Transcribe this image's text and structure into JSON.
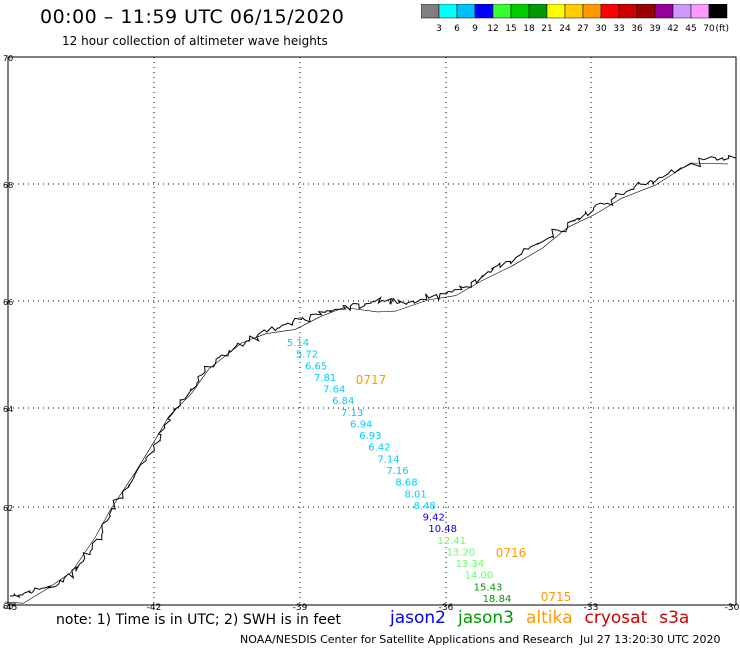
{
  "header": {
    "title": "00:00 – 11:59 UTC 06/15/2020",
    "subtitle": "12 hour collection of altimeter wave heights"
  },
  "scale": {
    "labels": [
      "3",
      "6",
      "9",
      "12",
      "15",
      "18",
      "21",
      "24",
      "27",
      "30",
      "33",
      "36",
      "39",
      "42",
      "45",
      "70"
    ],
    "unit": "(ft)",
    "colors": [
      "#7f7f7f",
      "#00ffff",
      "#00bfff",
      "#0000ff",
      "#33ff33",
      "#00cc00",
      "#009900",
      "#ffff00",
      "#ffcc00",
      "#ff9900",
      "#ff0000",
      "#cc0000",
      "#990000",
      "#990099",
      "#cc99ff",
      "#ff99ff",
      "#000000"
    ]
  },
  "map": {
    "lat_labels": [
      "70",
      "68",
      "66",
      "64",
      "62",
      "60"
    ],
    "lon_labels": [
      "-45",
      "-42",
      "-39",
      "-36",
      "-33",
      "-30"
    ]
  },
  "track": {
    "points": [
      {
        "value": "5.14",
        "color": "#00ccff"
      },
      {
        "value": "5.72",
        "color": "#00ccff"
      },
      {
        "value": "6.65",
        "color": "#00ccff"
      },
      {
        "value": "7.81",
        "color": "#00ccff"
      },
      {
        "value": "7.64",
        "color": "#00ccff"
      },
      {
        "value": "6.84",
        "color": "#00ccff"
      },
      {
        "value": "7.13",
        "color": "#00ccff"
      },
      {
        "value": "6.94",
        "color": "#00ccff"
      },
      {
        "value": "6.93",
        "color": "#00ccff"
      },
      {
        "value": "6.42",
        "color": "#00ccff"
      },
      {
        "value": "7.14",
        "color": "#00ccff"
      },
      {
        "value": "7.16",
        "color": "#00ccff"
      },
      {
        "value": "8.68",
        "color": "#00ccff"
      },
      {
        "value": "8.01",
        "color": "#00ccff"
      },
      {
        "value": "8.48",
        "color": "#00ccff"
      },
      {
        "value": "9.42",
        "color": "#0000ff"
      },
      {
        "value": "10.48",
        "color": "#0000ff"
      },
      {
        "value": "12.41",
        "color": "#66ff66"
      },
      {
        "value": "13.20",
        "color": "#66ff66"
      },
      {
        "value": "13.34",
        "color": "#66ff66"
      },
      {
        "value": "14.00",
        "color": "#66ff66"
      },
      {
        "value": "15.43",
        "color": "#009900"
      },
      {
        "value": "18.84",
        "color": "#009900"
      }
    ],
    "time_labels": [
      {
        "text": "0717",
        "color": "#ff9900"
      },
      {
        "text": "0716",
        "color": "#ff9900"
      },
      {
        "text": "0715",
        "color": "#ff9900"
      }
    ]
  },
  "footer": {
    "note": "note: 1) Time is in UTC; 2) SWH is in feet",
    "satellites": [
      {
        "name": "jason2",
        "color": "#0000ff"
      },
      {
        "name": "jason3",
        "color": "#009900"
      },
      {
        "name": "altika",
        "color": "#ff9900"
      },
      {
        "name": "cryosat",
        "color": "#cc0000"
      },
      {
        "name": "s3a",
        "color": "#cc0000"
      }
    ],
    "credit": "NOAA/NESDIS Center for Satellite Applications and Research",
    "timestamp": "Jul 27 13:20:30 UTC 2020"
  }
}
